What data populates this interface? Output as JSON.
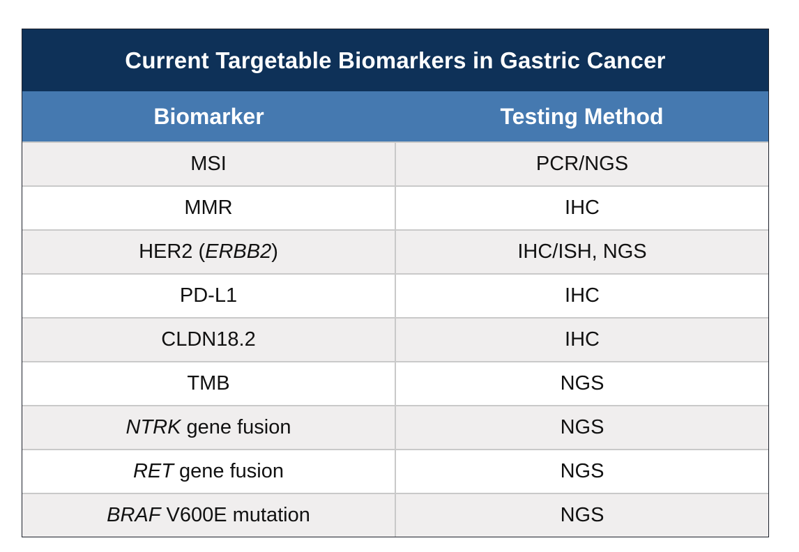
{
  "title": "Current Targetable Biomarkers in Gastric Cancer",
  "columns": [
    "Biomarker",
    "Testing Method"
  ],
  "rows": [
    {
      "biomarker": {
        "before": "MSI",
        "italic": "",
        "after": ""
      },
      "method": "PCR/NGS"
    },
    {
      "biomarker": {
        "before": "MMR",
        "italic": "",
        "after": ""
      },
      "method": "IHC"
    },
    {
      "biomarker": {
        "before": "HER2 (",
        "italic": "ERBB2",
        "after": ")"
      },
      "method": "IHC/ISH, NGS"
    },
    {
      "biomarker": {
        "before": "PD-L1",
        "italic": "",
        "after": ""
      },
      "method": "IHC"
    },
    {
      "biomarker": {
        "before": "CLDN18.2",
        "italic": "",
        "after": ""
      },
      "method": "IHC"
    },
    {
      "biomarker": {
        "before": "TMB",
        "italic": "",
        "after": ""
      },
      "method": "NGS"
    },
    {
      "biomarker": {
        "before": "",
        "italic": "NTRK",
        "after": " gene fusion"
      },
      "method": "NGS"
    },
    {
      "biomarker": {
        "before": "",
        "italic": "RET",
        "after": " gene fusion"
      },
      "method": "NGS"
    },
    {
      "biomarker": {
        "before": "",
        "italic": "BRAF",
        "after": " V600E mutation"
      },
      "method": "NGS"
    }
  ],
  "colors": {
    "title_bg": "#0e3158",
    "header_bg": "#4579b0",
    "row_alt_bg": "#f0eeee",
    "grid": "#c9c9c9"
  }
}
